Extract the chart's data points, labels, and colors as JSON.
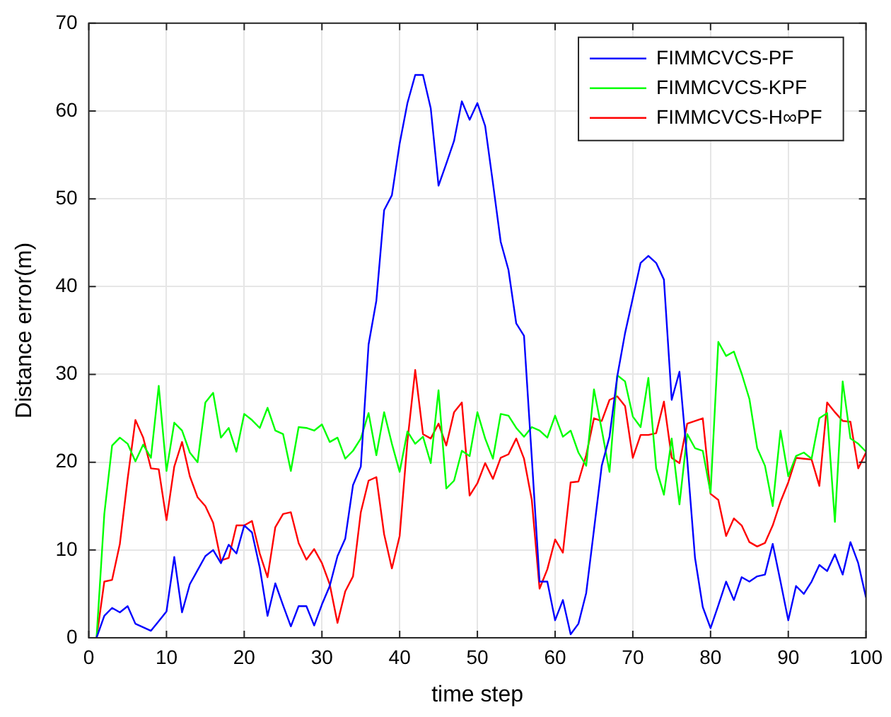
{
  "chart_data": {
    "type": "line",
    "xlabel": "time step",
    "ylabel": "Distance error(m)",
    "x": [
      1,
      2,
      3,
      4,
      5,
      6,
      7,
      8,
      9,
      10,
      11,
      12,
      13,
      14,
      15,
      16,
      17,
      18,
      19,
      20,
      21,
      22,
      23,
      24,
      25,
      26,
      27,
      28,
      29,
      30,
      31,
      32,
      33,
      34,
      35,
      36,
      37,
      38,
      39,
      40,
      41,
      42,
      43,
      44,
      45,
      46,
      47,
      48,
      49,
      50,
      51,
      52,
      53,
      54,
      55,
      56,
      57,
      58,
      59,
      60,
      61,
      62,
      63,
      64,
      65,
      66,
      67,
      68,
      69,
      70,
      71,
      72,
      73,
      74,
      75,
      76,
      77,
      78,
      79,
      80,
      81,
      82,
      83,
      84,
      85,
      86,
      87,
      88,
      89,
      90,
      91,
      92,
      93,
      94,
      95,
      96,
      97,
      98,
      99,
      100
    ],
    "series": [
      {
        "name": "FIMMCVCS-PF",
        "color": "#0000ff",
        "values": [
          0,
          2.5,
          3.4,
          2.9,
          3.6,
          1.6,
          1.2,
          0.8,
          1.9,
          3,
          9.2,
          2.9,
          6.1,
          7.7,
          9.3,
          10,
          8.5,
          10.6,
          9.6,
          12.8,
          12,
          8,
          2.5,
          6.2,
          3.7,
          1.3,
          3.6,
          3.6,
          1.4,
          3.8,
          5.9,
          9.3,
          11.3,
          17.4,
          19.5,
          33.4,
          38.4,
          48.7,
          50.4,
          56.3,
          60.9,
          64.1,
          64.1,
          60.3,
          51.5,
          54,
          56.6,
          61.1,
          59,
          60.9,
          58.3,
          51.8,
          45.1,
          41.9,
          35.8,
          34.4,
          20.5,
          6.4,
          6.4,
          2,
          4.3,
          0.4,
          1.6,
          5.1,
          12.3,
          19.6,
          22.9,
          29.8,
          34.7,
          38.7,
          42.7,
          43.5,
          42.7,
          40.8,
          27.1,
          30.3,
          20.3,
          9.1,
          3.5,
          1.1,
          3.7,
          6.4,
          4.3,
          6.9,
          6.4,
          7,
          7.2,
          10.7,
          6.4,
          2,
          5.9,
          5,
          6.4,
          8.3,
          7.6,
          9.5,
          7.2,
          10.9,
          8.5,
          4.6
        ]
      },
      {
        "name": "FIMMCVCS-KPF",
        "color": "#00ff00",
        "values": [
          0,
          14.1,
          21.9,
          22.8,
          22.1,
          20.1,
          22,
          20.5,
          28.7,
          19,
          24.5,
          23.6,
          21.1,
          20,
          26.8,
          27.9,
          22.8,
          23.9,
          21.2,
          25.5,
          24.8,
          23.9,
          26.2,
          23.6,
          23.2,
          19,
          24,
          23.9,
          23.6,
          24.3,
          22.3,
          22.8,
          20.4,
          21.3,
          22.7,
          25.6,
          20.8,
          25.7,
          22.1,
          18.9,
          23.5,
          22.1,
          22.9,
          19.9,
          28.2,
          17,
          17.9,
          21.3,
          20.7,
          25.7,
          22.7,
          20.4,
          25.5,
          25.3,
          23.9,
          22.9,
          24,
          23.6,
          22.8,
          25.3,
          22.9,
          23.6,
          21.1,
          19.6,
          28.3,
          23.7,
          18.9,
          29.9,
          29.2,
          25.2,
          24,
          29.6,
          19.3,
          16.3,
          22.7,
          15.2,
          23.2,
          21.6,
          21.3,
          16.5,
          33.7,
          32.1,
          32.6,
          30.1,
          27.2,
          21.6,
          19.6,
          15,
          23.6,
          18.4,
          20.7,
          21.1,
          20.4,
          25,
          25.6,
          13.2,
          29.2,
          22.7,
          22.1,
          21.2
        ]
      },
      {
        "name": "FIMMCVCS-H∞PF",
        "color": "#ff0000",
        "values": [
          0,
          6.4,
          6.6,
          10.7,
          18.1,
          24.8,
          22.8,
          19.3,
          19.2,
          13.4,
          19.5,
          22.3,
          18.4,
          16,
          15,
          13.1,
          8.8,
          9.1,
          12.8,
          12.8,
          13.3,
          9.6,
          6.9,
          12.6,
          14.1,
          14.3,
          10.8,
          8.9,
          10.1,
          8.5,
          6.1,
          1.7,
          5.3,
          7,
          14.3,
          17.9,
          18.3,
          11.8,
          7.9,
          11.6,
          22.4,
          30.5,
          23.2,
          22.7,
          24.4,
          21.9,
          25.7,
          26.8,
          16.2,
          17.6,
          19.9,
          18.1,
          20.5,
          20.9,
          22.7,
          20.4,
          15.7,
          5.6,
          7.8,
          11.2,
          9.7,
          17.7,
          17.8,
          20.8,
          25,
          24.7,
          27.1,
          27.5,
          26.4,
          20.5,
          23.1,
          23.1,
          23.3,
          26.9,
          20.5,
          19.9,
          24.4,
          24.7,
          25,
          16.4,
          15.7,
          11.6,
          13.6,
          12.8,
          10.9,
          10.4,
          10.8,
          12.8,
          15.5,
          17.7,
          20.5,
          20.4,
          20.3,
          17.3,
          26.8,
          25.7,
          24.7,
          24.6,
          19.3,
          21.1
        ]
      }
    ],
    "xlim": [
      0,
      100
    ],
    "xticks": [
      0,
      10,
      20,
      30,
      40,
      50,
      60,
      70,
      80,
      90,
      100
    ],
    "ylim": [
      0,
      70
    ],
    "yticks": [
      0,
      10,
      20,
      30,
      40,
      50,
      60,
      70
    ],
    "grid": true,
    "legend": "top right"
  }
}
